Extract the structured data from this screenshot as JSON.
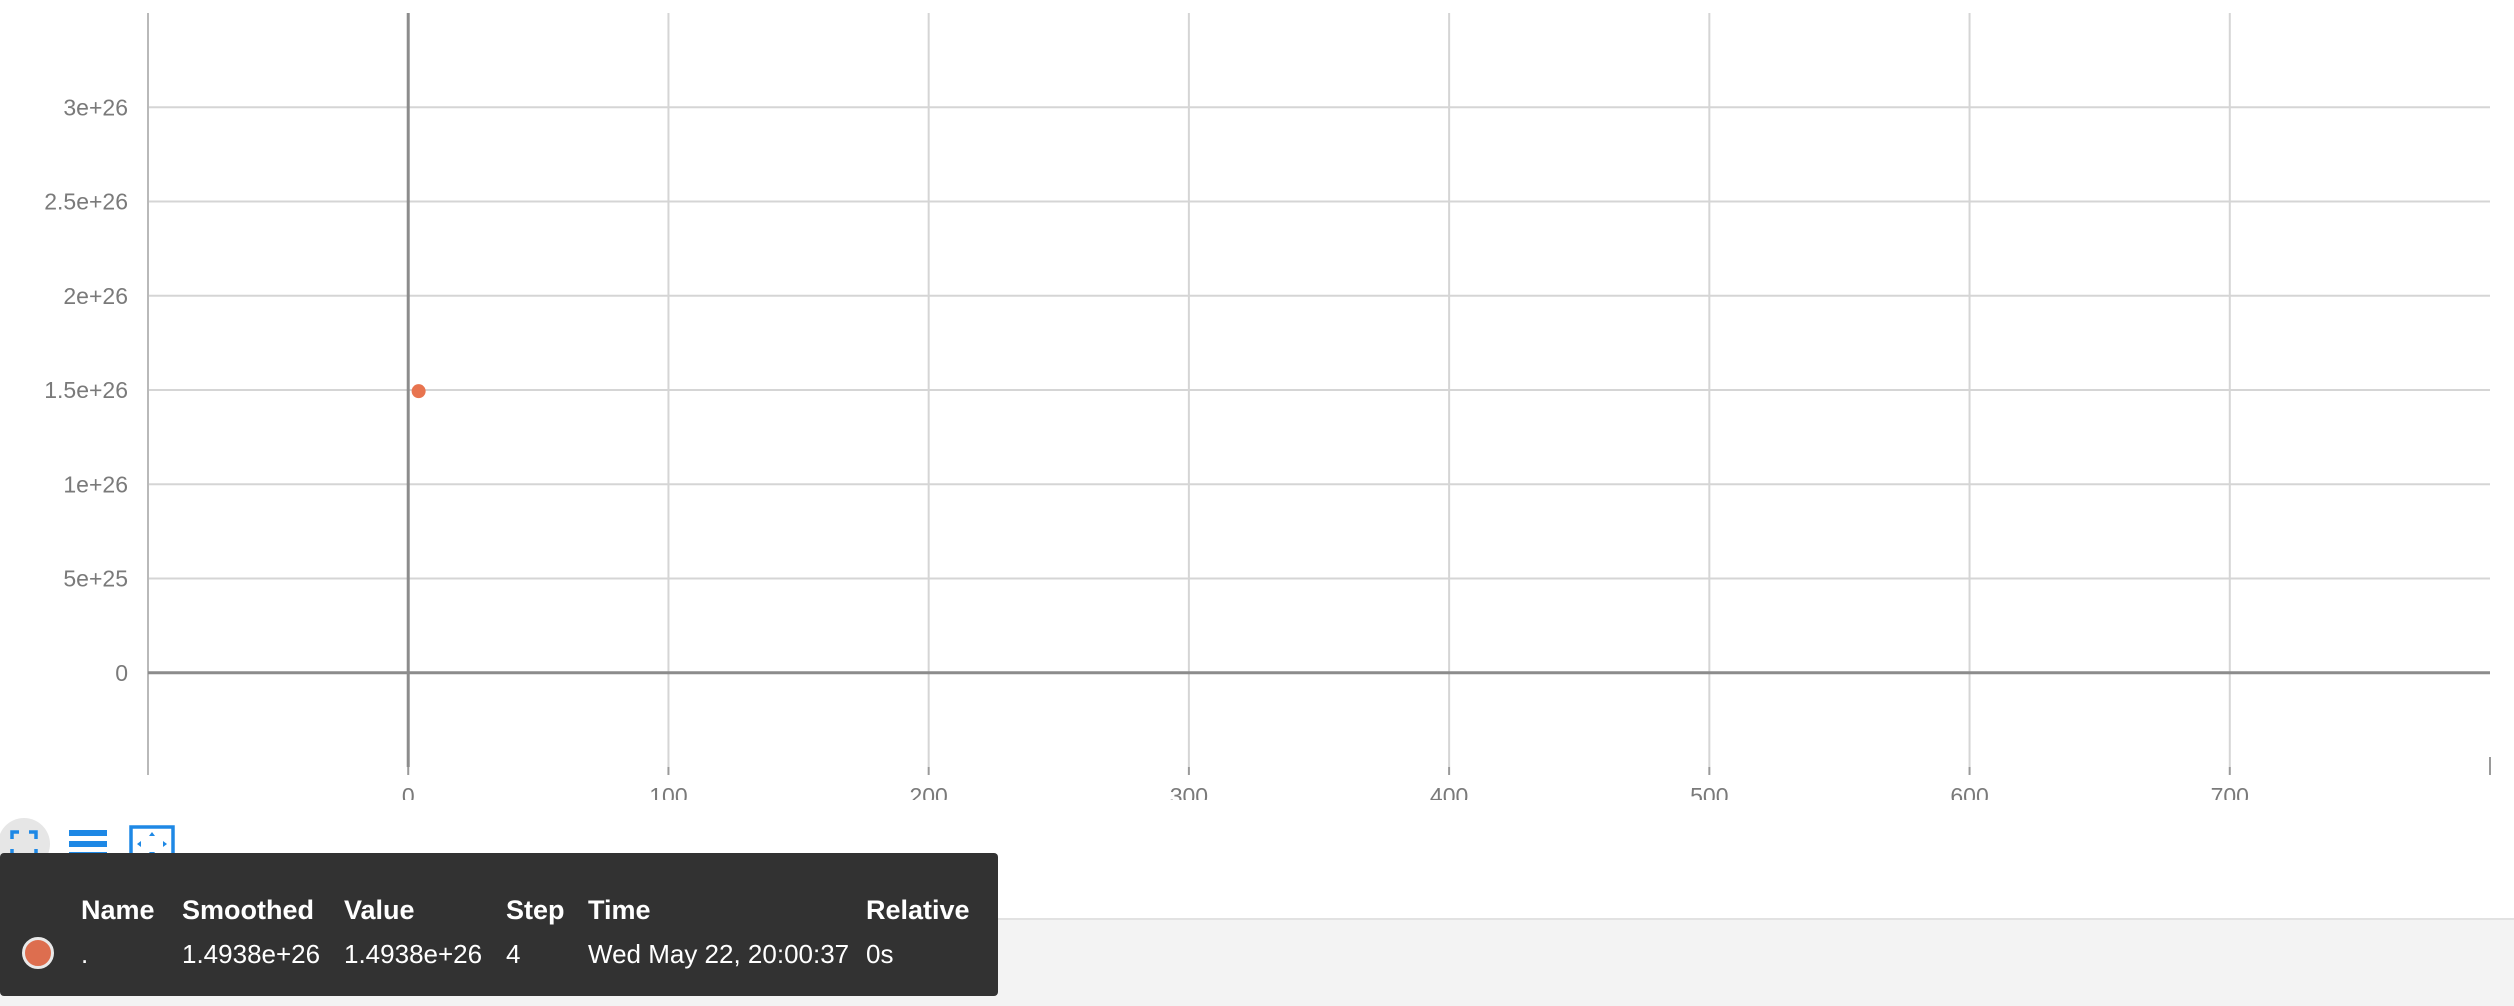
{
  "chart_data": {
    "type": "scatter",
    "x_ticks": [
      "0",
      "100",
      "200",
      "300",
      "400",
      "500",
      "600",
      "700"
    ],
    "y_ticks": [
      "0",
      "5e+25",
      "1e+26",
      "1.5e+26",
      "2e+26",
      "2.5e+26",
      "3e+26"
    ],
    "xlim": [
      -100,
      800
    ],
    "ylim": [
      -5e+25,
      3.5e+26
    ],
    "grid": true,
    "series": [
      {
        "color": "#e8744f",
        "points": [
          {
            "x": 4,
            "y": 1.4938e+26
          }
        ]
      }
    ]
  },
  "toolbar": {
    "fullscreen_icon": "fullscreen-icon",
    "legend_icon": "legend-lines-icon",
    "fit_icon": "fit-domain-icon",
    "accent": "#1e88e5"
  },
  "tooltip": {
    "headers": {
      "name": "Name",
      "smoothed": "Smoothed",
      "value": "Value",
      "step": "Step",
      "time": "Time",
      "relative": "Relative"
    },
    "row": {
      "color": "#dd6e4f",
      "name": ".",
      "smoothed": "1.4938e+26",
      "value": "1.4938e+26",
      "step": "4",
      "time": "Wed May 22, 20:00:37",
      "relative": "0s"
    }
  }
}
